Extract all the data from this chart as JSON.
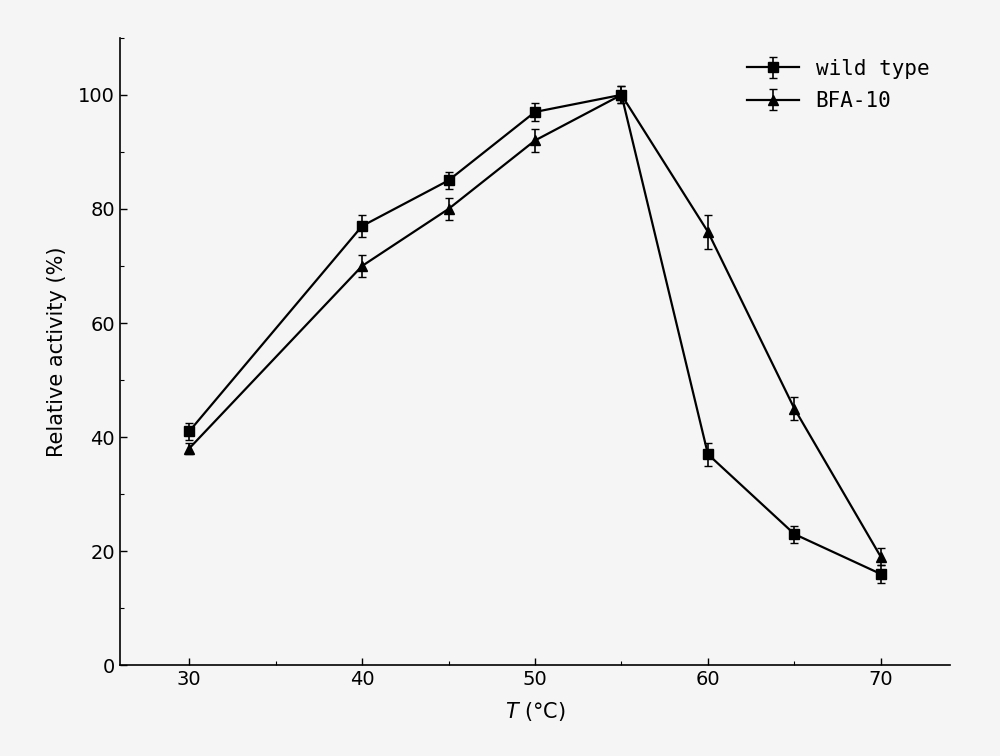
{
  "x": [
    30,
    40,
    45,
    50,
    55,
    60,
    65,
    70
  ],
  "wild_type_y": [
    41,
    77,
    85,
    97,
    100,
    37,
    23,
    16
  ],
  "wild_type_err": [
    1.5,
    2.0,
    1.5,
    1.5,
    1.5,
    2.0,
    1.5,
    1.5
  ],
  "bfa10_y": [
    38,
    70,
    80,
    92,
    100,
    76,
    45,
    19
  ],
  "bfa10_err": [
    1.0,
    2.0,
    2.0,
    2.0,
    1.5,
    3.0,
    2.0,
    1.5
  ],
  "xlabel": "T (°C)",
  "ylabel": "Relative activity (%)",
  "xlim": [
    26,
    74
  ],
  "ylim": [
    0,
    110
  ],
  "xticks": [
    30,
    40,
    50,
    60,
    70
  ],
  "yticks": [
    0,
    20,
    40,
    60,
    80,
    100
  ],
  "legend_labels": [
    "wild type",
    "BFA-10"
  ],
  "line_color": "#000000",
  "background_color": "#f5f5f5",
  "marker_wild": "s",
  "marker_bfa": "^",
  "markersize": 7,
  "linewidth": 1.6,
  "capsize": 3,
  "elinewidth": 1.2,
  "fontsize_axis_label": 15,
  "fontsize_tick": 14,
  "fontsize_legend": 15
}
